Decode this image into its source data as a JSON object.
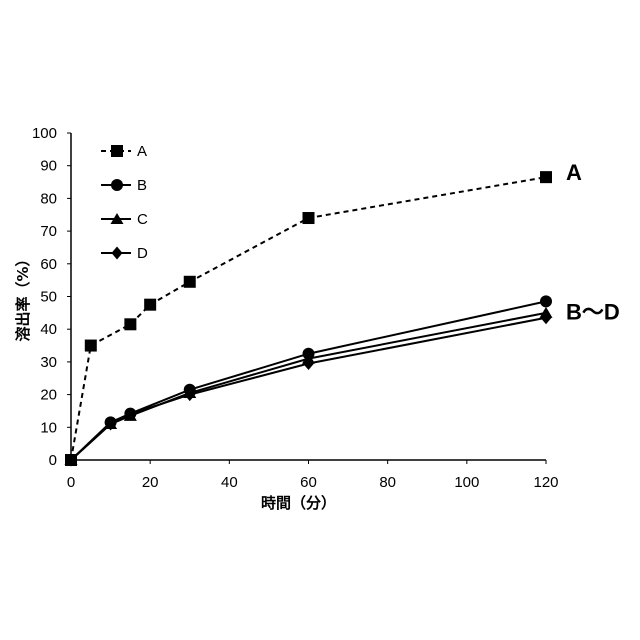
{
  "chart_data": {
    "type": "line",
    "xlabel": "時間（分）",
    "ylabel": "溶出率（%）",
    "xlim": [
      0,
      120
    ],
    "ylim": [
      0,
      100
    ],
    "xticks": [
      0,
      20,
      40,
      60,
      80,
      100,
      120
    ],
    "yticks": [
      0,
      10,
      20,
      30,
      40,
      50,
      60,
      70,
      80,
      90,
      100
    ],
    "grid": false,
    "legend_position": "top-left",
    "series": [
      {
        "name": "A",
        "marker": "square",
        "dashed": true,
        "x": [
          0,
          5,
          15,
          20,
          30,
          60,
          120
        ],
        "y": [
          0,
          35,
          41.5,
          47.5,
          54.5,
          74,
          86.5
        ]
      },
      {
        "name": "B",
        "marker": "circle",
        "dashed": false,
        "x": [
          0,
          10,
          15,
          30,
          60,
          120
        ],
        "y": [
          0,
          11.5,
          14.2,
          21.5,
          32.5,
          48.5
        ]
      },
      {
        "name": "C",
        "marker": "triangle",
        "dashed": false,
        "x": [
          0,
          10,
          15,
          30,
          60,
          120
        ],
        "y": [
          0,
          11,
          13.5,
          20.5,
          31,
          45
        ]
      },
      {
        "name": "D",
        "marker": "diamond",
        "dashed": false,
        "x": [
          0,
          10,
          15,
          30,
          60,
          120
        ],
        "y": [
          0,
          11,
          14,
          20,
          29.5,
          43.5
        ]
      }
    ],
    "annotations": [
      {
        "text": "A",
        "series": "A"
      },
      {
        "text": "B～D",
        "series": "B"
      }
    ]
  }
}
